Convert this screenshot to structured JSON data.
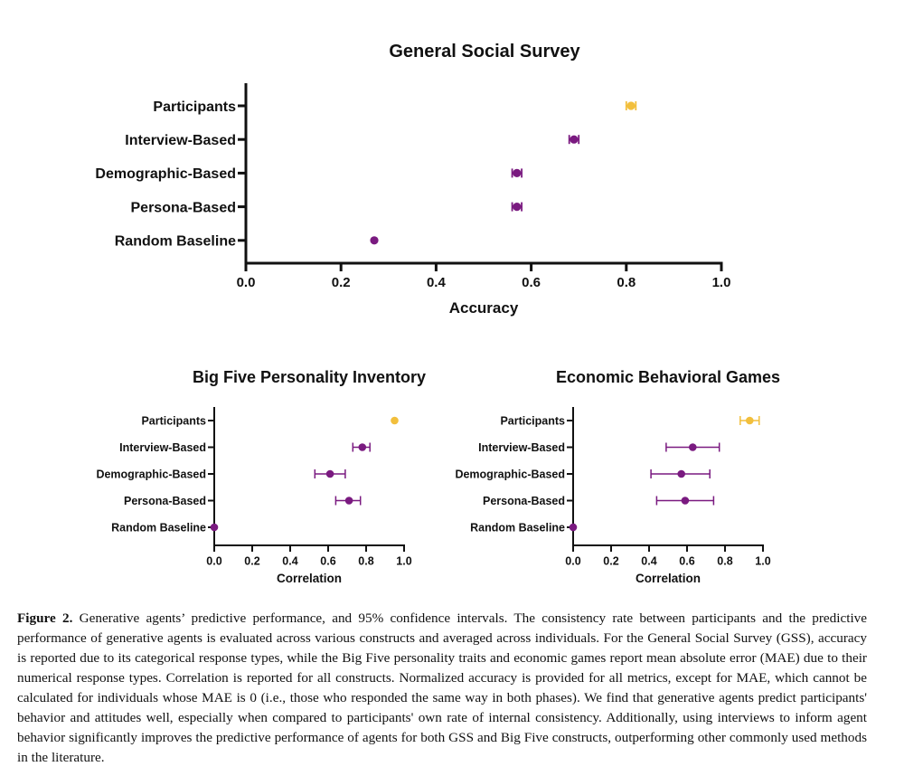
{
  "colors": {
    "participants": "#f2bf3c",
    "agents": "#7a1a80",
    "axis": "#111111"
  },
  "chart_data": [
    {
      "type": "scatter",
      "title": "General Social Survey",
      "xlabel": "Accuracy",
      "xlim": [
        0,
        1.0
      ],
      "xticks": [
        "0.0",
        "0.2",
        "0.4",
        "0.6",
        "0.8",
        "1.0"
      ],
      "categories": [
        "Participants",
        "Interview-Based",
        "Demographic-Based",
        "Persona-Based",
        "Random Baseline"
      ],
      "values": [
        0.81,
        0.69,
        0.57,
        0.57,
        0.27
      ],
      "ci_low": [
        0.8,
        0.68,
        0.56,
        0.56,
        0.27
      ],
      "ci_high": [
        0.82,
        0.7,
        0.58,
        0.58,
        0.27
      ]
    },
    {
      "type": "scatter",
      "title": "Big Five Personality Inventory",
      "xlabel": "Correlation",
      "xlim": [
        0,
        1.0
      ],
      "xticks": [
        "0.0",
        "0.2",
        "0.4",
        "0.6",
        "0.8",
        "1.0"
      ],
      "categories": [
        "Participants",
        "Interview-Based",
        "Demographic-Based",
        "Persona-Based",
        "Random Baseline"
      ],
      "values": [
        0.95,
        0.78,
        0.61,
        0.71,
        0.0
      ],
      "ci_low": [
        0.95,
        0.73,
        0.53,
        0.64,
        0.0
      ],
      "ci_high": [
        0.95,
        0.82,
        0.69,
        0.77,
        0.0
      ]
    },
    {
      "type": "scatter",
      "title": "Economic Behavioral Games",
      "xlabel": "Correlation",
      "xlim": [
        0,
        1.0
      ],
      "xticks": [
        "0.0",
        "0.2",
        "0.4",
        "0.6",
        "0.8",
        "1.0"
      ],
      "categories": [
        "Participants",
        "Interview-Based",
        "Demographic-Based",
        "Persona-Based",
        "Random Baseline"
      ],
      "values": [
        0.93,
        0.63,
        0.57,
        0.59,
        0.0
      ],
      "ci_low": [
        0.88,
        0.49,
        0.41,
        0.44,
        0.0
      ],
      "ci_high": [
        0.98,
        0.77,
        0.72,
        0.74,
        0.0
      ]
    }
  ],
  "caption": {
    "label": "Figure 2.",
    "text": "Generative agents’ predictive performance, and 95% confidence intervals. The consistency rate between participants and the predictive performance of generative agents is evaluated across various constructs and averaged across individuals. For the General Social Survey (GSS), accuracy is reported due to its categorical response types, while the Big Five personality traits and economic games report mean absolute error (MAE) due to their numerical response types. Correlation is reported for all constructs. Normalized accuracy is provided for all metrics, except for MAE, which cannot be calculated for individuals whose MAE is 0 (i.e., those who responded the same way in both phases). We find that generative agents predict participants' behavior and attitudes well, especially when compared to participants' own rate of internal consistency. Additionally, using interviews to inform agent behavior significantly improves the predictive performance of agents for both GSS and Big Five constructs, outperforming other commonly used methods in the literature."
  }
}
